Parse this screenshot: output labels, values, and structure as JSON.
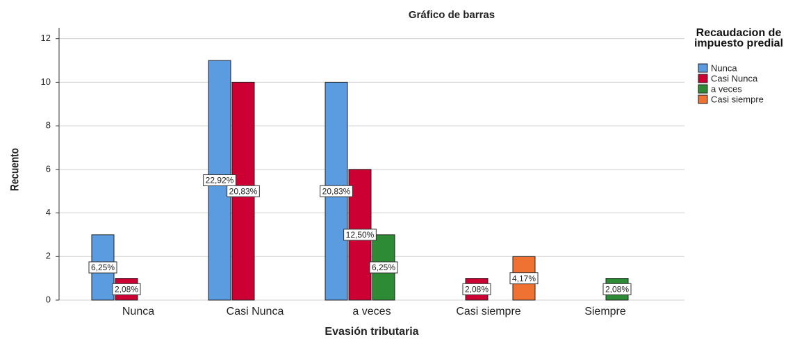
{
  "chart_data": {
    "type": "bar",
    "title": "Gráfico de barras",
    "x_label": "Evasión tributaria",
    "y_label": "Recuento",
    "legend_title": "Recaudacion de impuesto predial",
    "legend_position": "right",
    "categories": [
      "Nunca",
      "Casi Nunca",
      "a veces",
      "Casi siempre",
      "Siempre"
    ],
    "series": [
      {
        "name": "Nunca",
        "color": "#5b9be0",
        "values": [
          3,
          11,
          10,
          null,
          null
        ],
        "percent_labels": [
          "6,25%",
          "22,92%",
          "20,83%",
          null,
          null
        ]
      },
      {
        "name": "Casi Nunca",
        "color": "#cc0033",
        "values": [
          1,
          10,
          6,
          1,
          null
        ],
        "percent_labels": [
          "2,08%",
          "20,83%",
          "12,50%",
          "2,08%",
          null
        ]
      },
      {
        "name": "a veces",
        "color": "#2e8b35",
        "values": [
          null,
          null,
          3,
          null,
          1
        ],
        "percent_labels": [
          null,
          null,
          "6,25%",
          null,
          "2,08%"
        ]
      },
      {
        "name": "Casi siempre",
        "color": "#f07232",
        "values": [
          null,
          null,
          null,
          2,
          null
        ],
        "percent_labels": [
          null,
          null,
          null,
          "4,17%",
          null
        ]
      }
    ],
    "ylim": [
      0,
      12.5
    ],
    "yticks": [
      0,
      2,
      4,
      6,
      8,
      10,
      12
    ],
    "grid": true
  }
}
